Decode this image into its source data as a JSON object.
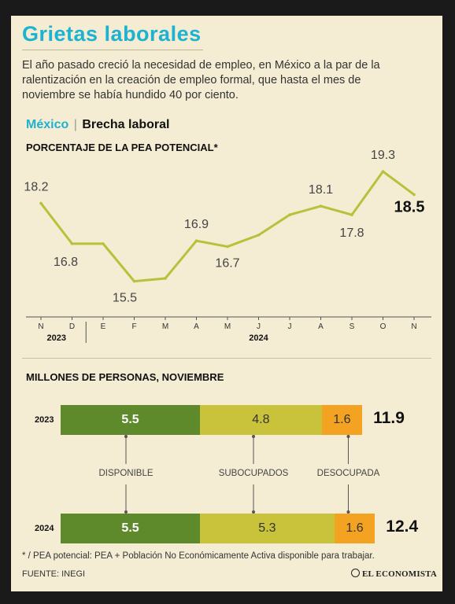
{
  "header": {
    "title": "Grietas laborales",
    "subtitle": "El año pasado creció la necesidad de empleo, en México a la par de la ralentización en la creación de empleo formal, que hasta el mes de noviembre se había hundido 40 por ciento."
  },
  "section": {
    "country": "México",
    "separator": "|",
    "name": "Brecha laboral"
  },
  "colors": {
    "accent": "#1fb2d0",
    "line": "#b7c23a",
    "disponible": "#5e8a2c",
    "subocupados": "#c8c33a",
    "desocupada": "#f3a222"
  },
  "chart_data": [
    {
      "type": "line",
      "title": "PORCENTAJE DE LA PEA POTENCIAL*",
      "x": [
        "N",
        "D",
        "E",
        "F",
        "M",
        "A",
        "M",
        "J",
        "J",
        "A",
        "S",
        "O",
        "N"
      ],
      "year_groups": [
        {
          "label": "2023",
          "months": [
            "N",
            "D"
          ]
        },
        {
          "label": "2024",
          "months": [
            "E",
            "F",
            "M",
            "A",
            "M",
            "J",
            "J",
            "A",
            "S",
            "O",
            "N"
          ]
        }
      ],
      "series": [
        {
          "values": [
            18.2,
            16.8,
            16.8,
            15.5,
            15.6,
            16.9,
            16.7,
            17.1,
            17.8,
            18.1,
            17.8,
            19.3,
            18.5
          ]
        }
      ],
      "point_labels": [
        {
          "index": 0,
          "text": "18.2"
        },
        {
          "index": 1,
          "text": "16.8"
        },
        {
          "index": 3,
          "text": "15.5"
        },
        {
          "index": 5,
          "text": "16.9"
        },
        {
          "index": 6,
          "text": "16.7"
        },
        {
          "index": 9,
          "text": "18.1"
        },
        {
          "index": 10,
          "text": "17.8"
        },
        {
          "index": 11,
          "text": "19.3"
        },
        {
          "index": 12,
          "text": "18.5",
          "emphasis": true
        }
      ],
      "ylim": [
        15.0,
        19.6
      ],
      "grid": false
    },
    {
      "type": "bar",
      "orientation": "horizontal-stacked",
      "title": "MILLONES DE PERSONAS, NOVIEMBRE",
      "categories": [
        "2023",
        "2024"
      ],
      "series": [
        {
          "name": "DISPONIBLE",
          "values": [
            5.5,
            5.5
          ]
        },
        {
          "name": "SUBOCUPADOS",
          "values": [
            4.8,
            5.3
          ]
        },
        {
          "name": "DESOCUPADA",
          "values": [
            1.6,
            1.6
          ]
        }
      ],
      "totals": [
        "11.9",
        "12.4"
      ],
      "value_labels": [
        [
          "5.5",
          "4.8",
          "1.6"
        ],
        [
          "5.5",
          "5.3",
          "1.6"
        ]
      ]
    }
  ],
  "footer": {
    "footnote": "* / PEA potencial: PEA + Población No Económicamente Activa disponible para trabajar.",
    "source": "FUENTE: INEGI",
    "brand": "EL ECONOMISTA",
    "brand_icon": "circle-logo-icon"
  }
}
